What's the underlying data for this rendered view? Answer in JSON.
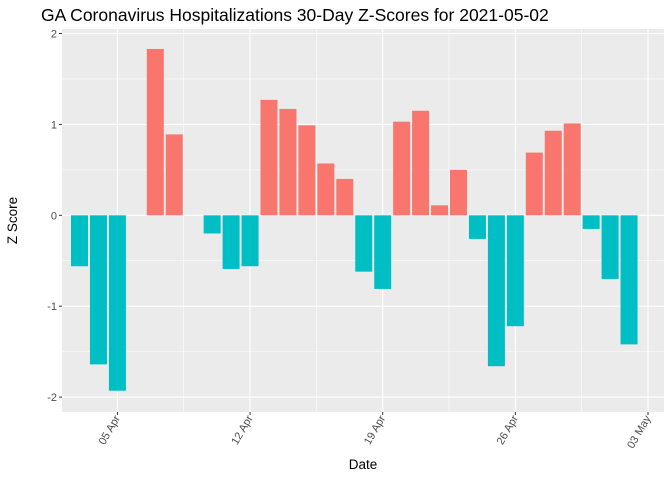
{
  "chart_data": {
    "type": "bar",
    "title": "GA Coronavirus Hospitalizations 30-Day Z-Scores for 2021-05-02",
    "xlabel": "Date",
    "ylabel": "Z Score",
    "ylim": [
      -2.1,
      2.05
    ],
    "y_ticks": [
      -2,
      -1,
      0,
      1,
      2
    ],
    "y_tick_labels": [
      "-2",
      "-1",
      "0",
      "1",
      "2"
    ],
    "x_ticks": [
      {
        "day": 5,
        "label": "05 Apr"
      },
      {
        "day": 12,
        "label": "12 Apr"
      },
      {
        "day": 19,
        "label": "19 Apr"
      },
      {
        "day": 26,
        "label": "26 Apr"
      },
      {
        "day": 33,
        "label": "03 May"
      }
    ],
    "x_dates": [
      "2021-04-03",
      "2021-04-04",
      "2021-04-05",
      "2021-04-06",
      "2021-04-07",
      "2021-04-08",
      "2021-04-09",
      "2021-04-10",
      "2021-04-11",
      "2021-04-12",
      "2021-04-13",
      "2021-04-14",
      "2021-04-15",
      "2021-04-16",
      "2021-04-17",
      "2021-04-18",
      "2021-04-19",
      "2021-04-20",
      "2021-04-21",
      "2021-04-22",
      "2021-04-23",
      "2021-04-24",
      "2021-04-25",
      "2021-04-26",
      "2021-04-27",
      "2021-04-28",
      "2021-04-29",
      "2021-04-30",
      "2021-05-01",
      "2021-05-02"
    ],
    "values": [
      -0.56,
      -1.64,
      -1.93,
      null,
      1.83,
      0.89,
      null,
      -0.2,
      -0.59,
      -0.56,
      1.27,
      1.17,
      0.99,
      0.57,
      0.4,
      -0.62,
      -0.81,
      1.03,
      1.15,
      0.11,
      0.5,
      -0.26,
      -1.66,
      -1.22,
      0.69,
      0.93,
      1.01,
      -0.15,
      -0.7,
      -1.42
    ],
    "colors": {
      "positive": "#F8766D",
      "negative": "#00BFC4",
      "panel": "#EBEBEB",
      "grid_major": "#FFFFFF"
    },
    "grid": true,
    "legend": "none"
  }
}
